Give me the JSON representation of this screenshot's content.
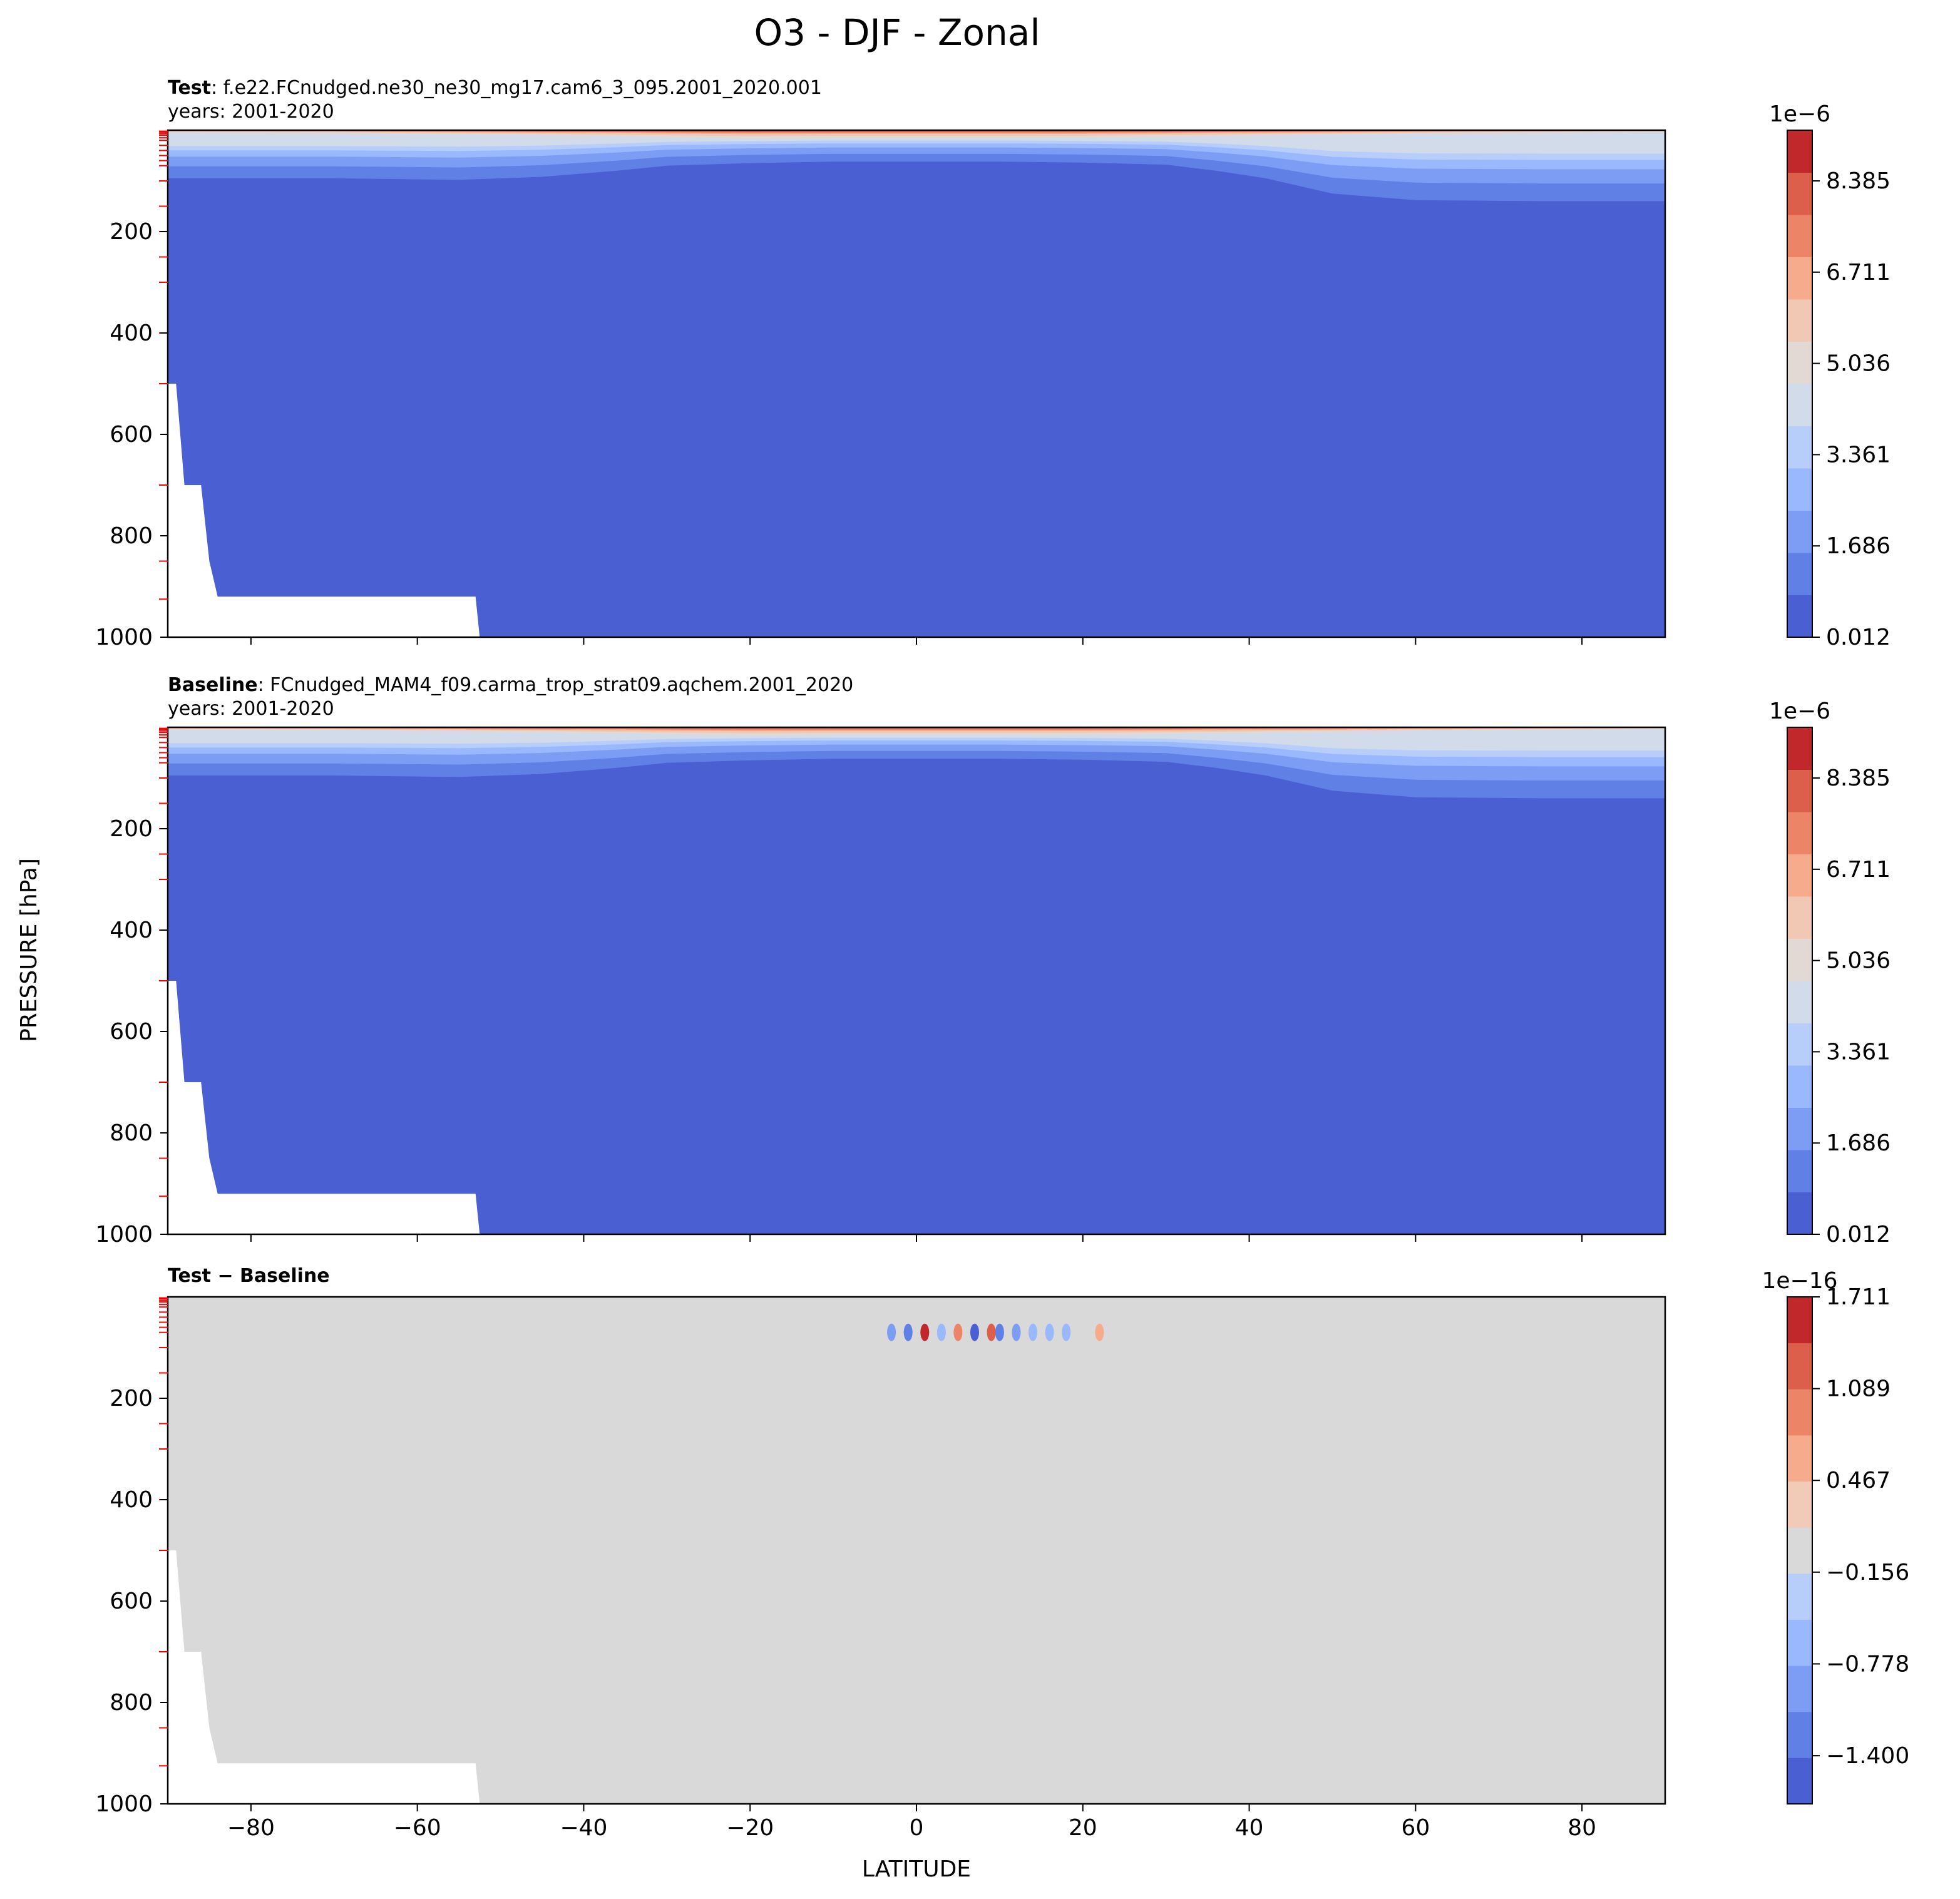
{
  "figure": {
    "suptitle": "O3 - DJF - Zonal",
    "ylabel": "PRESSURE [hPa]",
    "xlabel": "LATITUDE"
  },
  "chart_data": [
    {
      "type": "heatmap",
      "panel": "test",
      "title_bold": "Test",
      "title_rest": ": f.e22.FCnudged.ne30_ne30_mg17.cam6_3_095.2001_2020.001",
      "subtitle": "years: 2001-2020",
      "xlabel": "",
      "ylabel": "PRESSURE [hPa]",
      "xlim": [
        -90,
        90
      ],
      "ylim": [
        1000,
        0
      ],
      "xticks": [
        -80,
        -60,
        -40,
        -20,
        0,
        20,
        40,
        60,
        80
      ],
      "yticks": [
        200,
        400,
        600,
        800,
        1000
      ],
      "colorbar": {
        "multiplier": "1e−6",
        "ticks": [
          "0.012",
          "1.686",
          "3.361",
          "5.036",
          "6.711",
          "8.385"
        ],
        "levels": 11,
        "colors": [
          "#4a5fd1",
          "#6180e6",
          "#7d9df5",
          "#9ab8fe",
          "#b7cefa",
          "#d1dbe9",
          "#e2d9d4",
          "#f1c8b4",
          "#f5ab8c",
          "#ec8567",
          "#db5f4a",
          "#c0282c"
        ]
      }
    },
    {
      "type": "heatmap",
      "panel": "baseline",
      "title_bold": "Baseline",
      "title_rest": ": FCnudged_MAM4_f09.carma_trop_strat09.aqchem.2001_2020",
      "subtitle": "years: 2001-2020",
      "xlabel": "",
      "ylabel": "PRESSURE [hPa]",
      "xlim": [
        -90,
        90
      ],
      "ylim": [
        1000,
        0
      ],
      "xticks": [
        -80,
        -60,
        -40,
        -20,
        0,
        20,
        40,
        60,
        80
      ],
      "yticks": [
        200,
        400,
        600,
        800,
        1000
      ],
      "colorbar": {
        "multiplier": "1e−6",
        "ticks": [
          "0.012",
          "1.686",
          "3.361",
          "5.036",
          "6.711",
          "8.385"
        ],
        "levels": 11,
        "colors": [
          "#4a5fd1",
          "#6180e6",
          "#7d9df5",
          "#9ab8fe",
          "#b7cefa",
          "#d1dbe9",
          "#e2d9d4",
          "#f1c8b4",
          "#f5ab8c",
          "#ec8567",
          "#db5f4a",
          "#c0282c"
        ]
      }
    },
    {
      "type": "heatmap",
      "panel": "difference",
      "title_bold": "Test − Baseline",
      "title_rest": "",
      "subtitle": "",
      "xlabel": "LATITUDE",
      "ylabel": "PRESSURE [hPa]",
      "xlim": [
        -90,
        90
      ],
      "ylim": [
        1000,
        0
      ],
      "xticks": [
        -80,
        -60,
        -40,
        -20,
        0,
        20,
        40,
        60,
        80
      ],
      "yticks": [
        200,
        400,
        600,
        800,
        1000
      ],
      "background_value": "−0.156 to 0.156",
      "anomalies_lat": [
        -3,
        -1,
        1,
        3,
        5,
        7,
        9,
        10,
        12,
        14,
        16,
        18,
        22
      ],
      "anomalies_pressure": 70,
      "colorbar": {
        "multiplier": "1e−16",
        "ticks": [
          "1.711",
          "1.089",
          "0.467",
          "−0.156",
          "−0.778",
          "−1.400"
        ],
        "levels": 11,
        "colors": [
          "#4a5fd1",
          "#6180e6",
          "#7d9df5",
          "#9ab8fe",
          "#b7cefa",
          "#d9d9d9",
          "#f1cab8",
          "#f5ab8c",
          "#ec8567",
          "#db5f4a",
          "#c0282c"
        ]
      }
    }
  ]
}
